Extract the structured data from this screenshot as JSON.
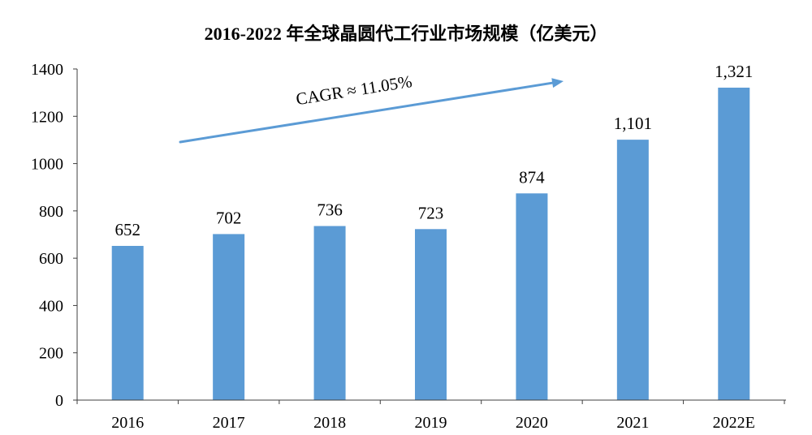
{
  "chart_data": {
    "type": "bar",
    "title": "2016-2022 年全球晶圆代工行业市场规模（亿美元）",
    "categories": [
      "2016",
      "2017",
      "2018",
      "2019",
      "2020",
      "2021",
      "2022E"
    ],
    "values": [
      652,
      702,
      736,
      723,
      874,
      1101,
      1321
    ],
    "value_labels": [
      "652",
      "702",
      "736",
      "723",
      "874",
      "1,101",
      "1,321"
    ],
    "ylim": [
      0,
      1400
    ],
    "yticks": [
      0,
      200,
      400,
      600,
      800,
      1000,
      1200,
      1400
    ],
    "grid": false,
    "legend": "none",
    "annotations": [
      {
        "text": "CAGR ≈ 11.05%"
      }
    ],
    "colors": {
      "bar": "#5B9BD5",
      "arrow": "#5B9BD5"
    }
  }
}
